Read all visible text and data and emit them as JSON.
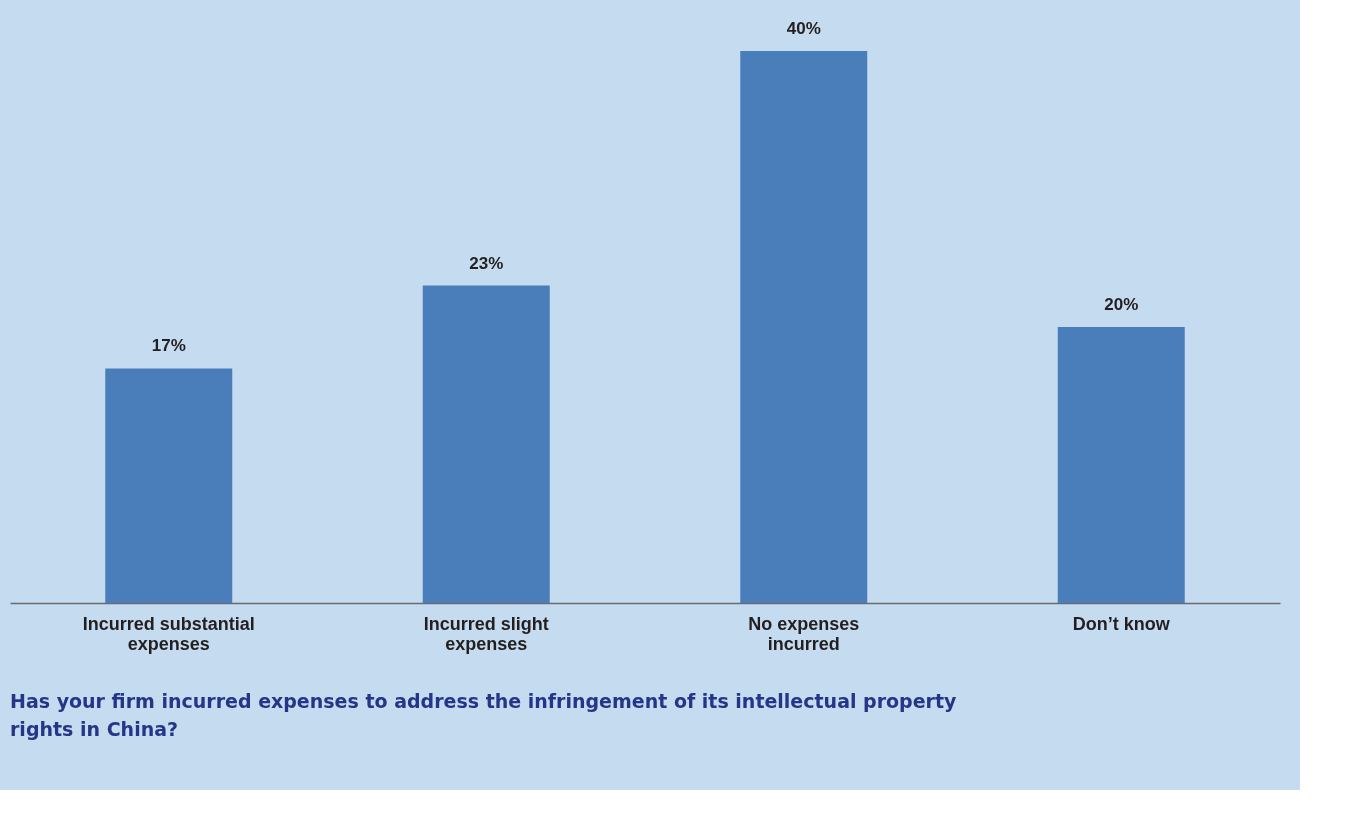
{
  "chart_data": {
    "type": "bar",
    "title": "Has your firm incurred expenses to address the infringement of its intellectual property rights in China?",
    "categories": [
      "Incurred substantial expenses",
      "Incurred slight expenses",
      "No expenses incurred",
      "Don’t know"
    ],
    "values": [
      17,
      23,
      40,
      20
    ],
    "color": "#4a7ebb",
    "value_labels": [
      "17%",
      "23%",
      "40%",
      "20%"
    ],
    "grid": false
  }
}
